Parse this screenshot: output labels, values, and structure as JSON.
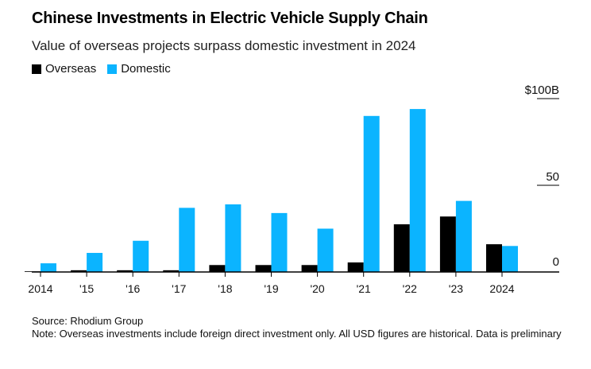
{
  "header": {
    "title": "Chinese Investments in Electric Vehicle Supply Chain",
    "subtitle": "Value of overseas projects surpass domestic investment in 2024"
  },
  "legend": {
    "overseas_label": "Overseas",
    "domestic_label": "Domestic"
  },
  "colors": {
    "overseas": "#000000",
    "domestic": "#0bb4ff",
    "axis": "#000000"
  },
  "chart_data": {
    "type": "bar",
    "title": "Chinese Investments in Electric Vehicle Supply Chain",
    "subtitle": "Value of overseas projects surpass domestic investment in 2024",
    "categories": [
      "2014",
      "'15",
      "'16",
      "'17",
      "'18",
      "'19",
      "'20",
      "'21",
      "'22",
      "'23",
      "2024"
    ],
    "series": [
      {
        "name": "Overseas",
        "values": [
          0.2,
          1,
          1,
          1,
          4,
          4,
          4,
          5.5,
          27.5,
          32,
          16
        ]
      },
      {
        "name": "Domestic",
        "values": [
          5,
          11,
          18,
          37,
          39,
          34,
          25,
          90,
          94,
          41,
          15
        ]
      }
    ],
    "ylim": [
      0,
      100
    ],
    "yticks": [
      {
        "value": 100,
        "label": "$100B"
      },
      {
        "value": 50,
        "label": "50"
      },
      {
        "value": 0,
        "label": "0"
      }
    ],
    "xlabel": "",
    "ylabel": "",
    "legend_position": "top-left",
    "grid": false
  },
  "footer": {
    "source": "Source: Rhodium Group",
    "note": "Note: Overseas investments include foreign direct investment only. All USD figures are historical. Data is preliminary"
  }
}
